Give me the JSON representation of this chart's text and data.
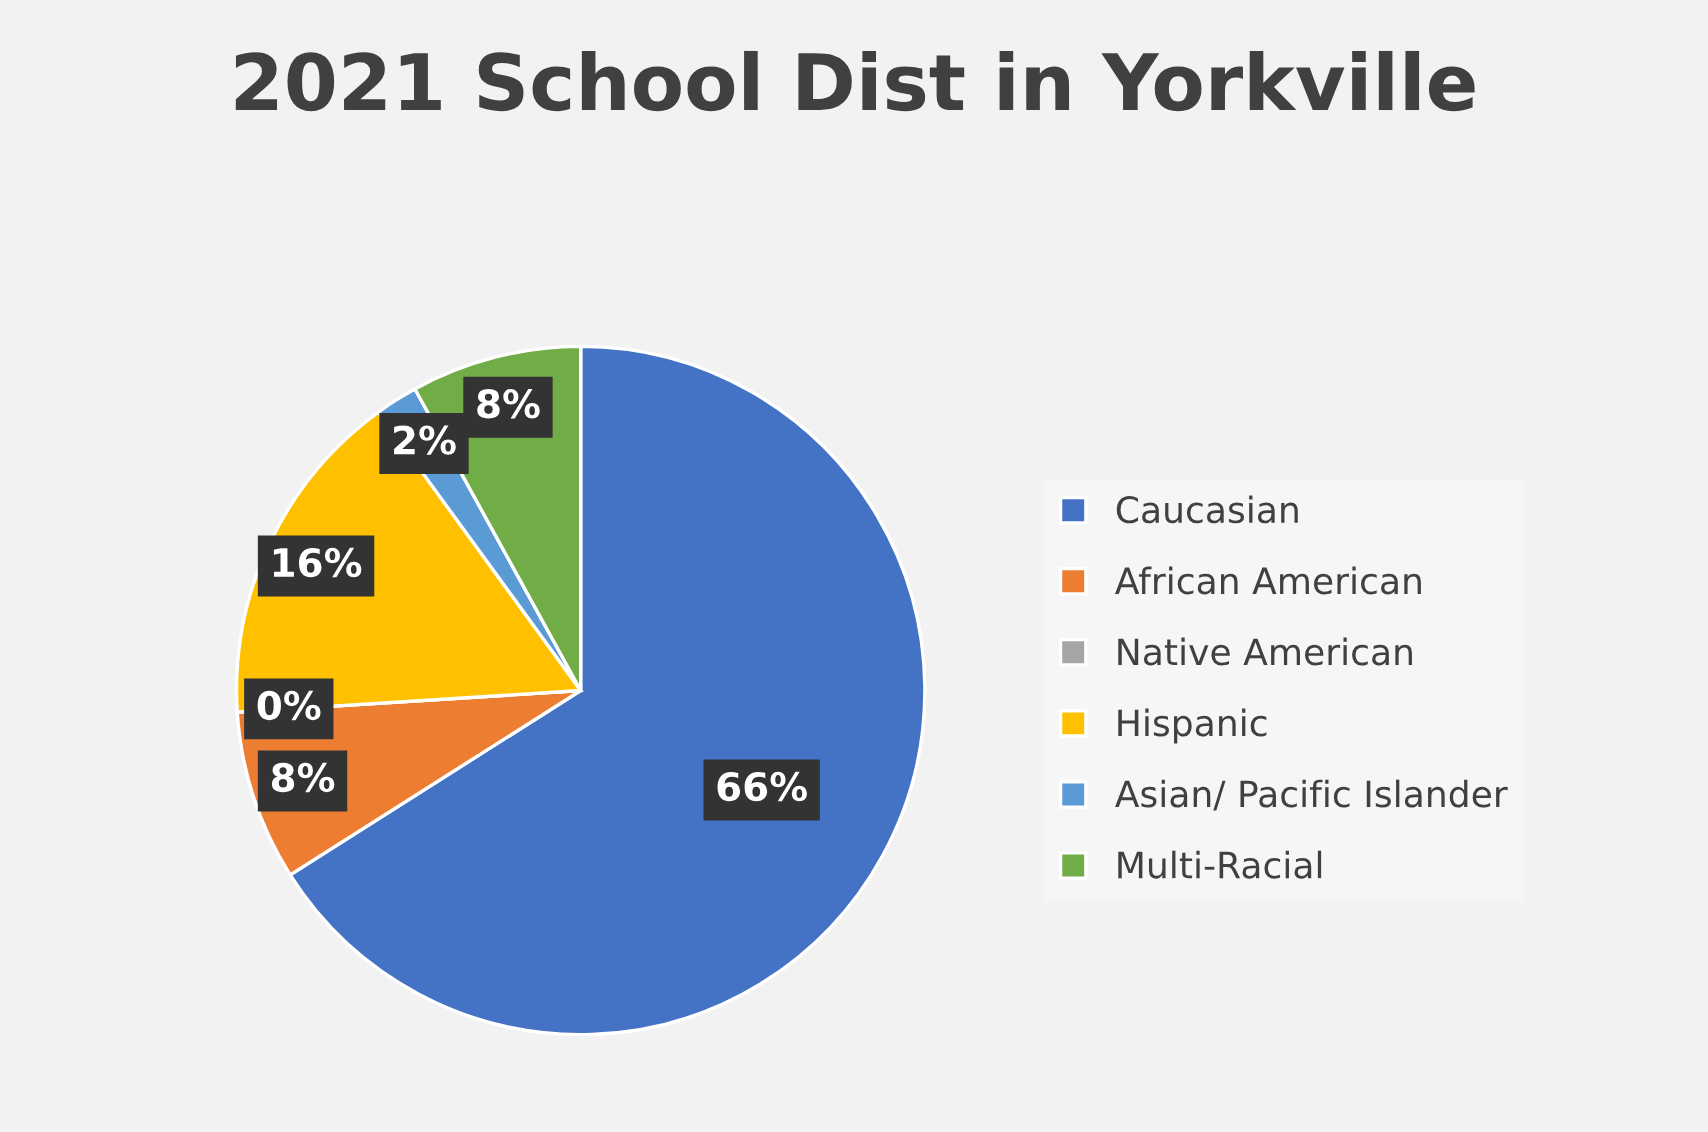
{
  "chart_data": {
    "type": "pie",
    "title": "2021 School Dist in Yorkville",
    "categories": [
      "Caucasian",
      "African American",
      "Native American",
      "Hispanic",
      "Asian/ Pacific Islander",
      "Multi-Racial"
    ],
    "values": [
      66,
      8,
      0,
      16,
      2,
      8
    ],
    "colors": [
      "#4472c4",
      "#ed7d31",
      "#a5a5a5",
      "#ffc000",
      "#5b9bd5",
      "#70ad47"
    ],
    "value_labels": [
      "66%",
      "8%",
      "0%",
      "16%",
      "2%",
      "8%"
    ],
    "legend": "right"
  }
}
